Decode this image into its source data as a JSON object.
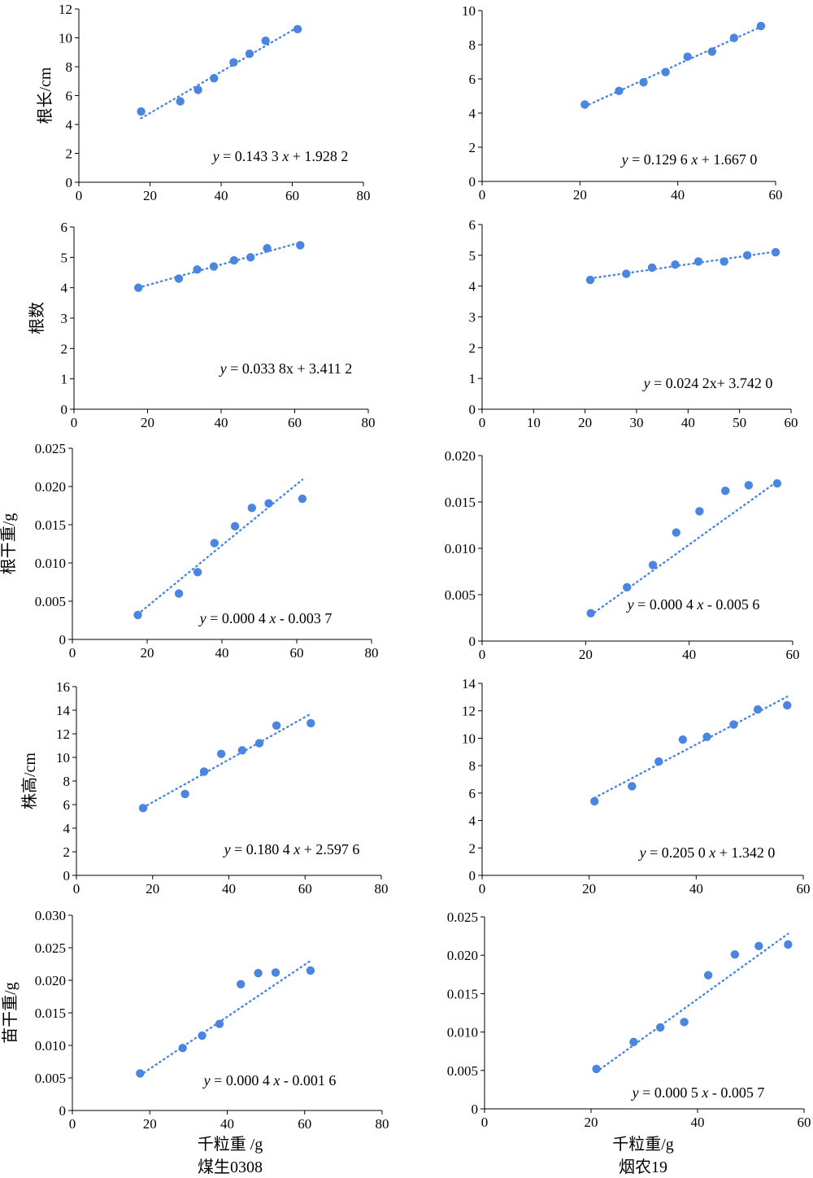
{
  "colors": {
    "point": "#4a86e0",
    "trend": "#4a86e0",
    "axis": "#000000"
  },
  "columns": [
    {
      "xlabel": "千粒重 /g",
      "cultivar": "煤生0308"
    },
    {
      "xlabel": "千粒重/g",
      "cultivar": "烟农19"
    }
  ],
  "chart_data": [
    {
      "type": "scatter",
      "row": 0,
      "col": 0,
      "ylabel": "根长/cm",
      "x_ticks": [
        "0",
        "20",
        "40",
        "60",
        "80"
      ],
      "y_ticks": [
        "0",
        "2",
        "4",
        "6",
        "8",
        "10",
        "12"
      ],
      "xlim": [
        0,
        80
      ],
      "ylim": [
        0,
        12
      ],
      "points": [
        [
          17.5,
          4.9
        ],
        [
          28.5,
          5.6
        ],
        [
          33.5,
          6.4
        ],
        [
          38,
          7.2
        ],
        [
          43.5,
          8.3
        ],
        [
          48,
          8.9
        ],
        [
          52.5,
          9.8
        ],
        [
          61.5,
          10.6
        ]
      ],
      "trend": {
        "x": [
          17.5,
          61.5
        ],
        "y": [
          4.43,
          10.73
        ]
      },
      "equation": "y = 0.143 3 x + 1.928 2"
    },
    {
      "type": "scatter",
      "row": 0,
      "col": 1,
      "ylabel": "",
      "x_ticks": [
        "0",
        "20",
        "40",
        "60"
      ],
      "y_ticks": [
        "0",
        "2",
        "4",
        "6",
        "8",
        "10"
      ],
      "xlim": [
        0,
        60
      ],
      "ylim": [
        0,
        10
      ],
      "points": [
        [
          21,
          4.5
        ],
        [
          28,
          5.3
        ],
        [
          33,
          5.8
        ],
        [
          37.5,
          6.4
        ],
        [
          42,
          7.3
        ],
        [
          47,
          7.6
        ],
        [
          51.5,
          8.4
        ],
        [
          57,
          9.1
        ]
      ],
      "trend": {
        "x": [
          21,
          57
        ],
        "y": [
          4.39,
          9.05
        ]
      },
      "equation": "y = 0.129 6 x + 1.667 0"
    },
    {
      "type": "scatter",
      "row": 1,
      "col": 0,
      "ylabel": "根数",
      "x_ticks": [
        "0",
        "20",
        "40",
        "60",
        "80"
      ],
      "y_ticks": [
        "0",
        "1",
        "2",
        "3",
        "4",
        "5",
        "6"
      ],
      "xlim": [
        0,
        80
      ],
      "ylim": [
        0,
        6
      ],
      "points": [
        [
          17.5,
          4.0
        ],
        [
          28.5,
          4.3
        ],
        [
          33.5,
          4.6
        ],
        [
          38,
          4.7
        ],
        [
          43.5,
          4.9
        ],
        [
          48,
          5.0
        ],
        [
          52.5,
          5.3
        ],
        [
          61.5,
          5.4
        ]
      ],
      "trend": {
        "x": [
          17.5,
          61.5
        ],
        "y": [
          4.0,
          5.49
        ]
      },
      "equation": "y = 0.033 8x + 3.411 2"
    },
    {
      "type": "scatter",
      "row": 1,
      "col": 1,
      "ylabel": "",
      "x_ticks": [
        "0",
        "10",
        "20",
        "30",
        "40",
        "50",
        "60"
      ],
      "y_ticks": [
        "0",
        "1",
        "2",
        "3",
        "4",
        "5",
        "6"
      ],
      "xlim": [
        0,
        60
      ],
      "ylim": [
        0,
        6
      ],
      "points": [
        [
          21,
          4.2
        ],
        [
          28,
          4.4
        ],
        [
          33,
          4.6
        ],
        [
          37.5,
          4.7
        ],
        [
          42,
          4.8
        ],
        [
          47,
          4.8
        ],
        [
          51.5,
          5.0
        ],
        [
          57,
          5.1
        ]
      ],
      "trend": {
        "x": [
          21,
          57
        ],
        "y": [
          4.25,
          5.12
        ]
      },
      "equation": "y = 0.024 2x+ 3.742 0"
    },
    {
      "type": "scatter",
      "row": 2,
      "col": 0,
      "ylabel": "根干重/g",
      "x_ticks": [
        "0",
        "20",
        "40",
        "60",
        "80"
      ],
      "y_ticks": [
        "0",
        "0.005",
        "0.010",
        "0.015",
        "0.020",
        "0.025"
      ],
      "xlim": [
        0,
        80
      ],
      "ylim": [
        0,
        0.025
      ],
      "points": [
        [
          17.5,
          0.0032
        ],
        [
          28.5,
          0.006
        ],
        [
          33.5,
          0.0088
        ],
        [
          38,
          0.0126
        ],
        [
          43.5,
          0.0148
        ],
        [
          48,
          0.0172
        ],
        [
          52.5,
          0.0178
        ],
        [
          61.5,
          0.0184
        ]
      ],
      "trend": {
        "x": [
          17.5,
          61.5
        ],
        "y": [
          0.0033,
          0.0209
        ]
      },
      "equation": "y = 0.000 4 x - 0.003 7"
    },
    {
      "type": "scatter",
      "row": 2,
      "col": 1,
      "ylabel": "",
      "x_ticks": [
        "0",
        "20",
        "40",
        "60"
      ],
      "y_ticks": [
        "0",
        "0.005",
        "0.010",
        "0.015",
        "0.020"
      ],
      "xlim": [
        0,
        60
      ],
      "ylim": [
        0,
        0.02
      ],
      "points": [
        [
          21,
          0.003
        ],
        [
          28,
          0.0058
        ],
        [
          33,
          0.0082
        ],
        [
          37.5,
          0.0117
        ],
        [
          42,
          0.014
        ],
        [
          47,
          0.0162
        ],
        [
          51.5,
          0.0168
        ],
        [
          57,
          0.017
        ]
      ],
      "trend": {
        "x": [
          21,
          57
        ],
        "y": [
          0.0028,
          0.0172
        ]
      },
      "equation": "y = 0.000 4 x - 0.005 6"
    },
    {
      "type": "scatter",
      "row": 3,
      "col": 0,
      "ylabel": "株高/cm",
      "x_ticks": [
        "0",
        "20",
        "40",
        "60",
        "80"
      ],
      "y_ticks": [
        "0",
        "2",
        "4",
        "6",
        "8",
        "10",
        "12",
        "14",
        "16"
      ],
      "xlim": [
        0,
        80
      ],
      "ylim": [
        0,
        16
      ],
      "points": [
        [
          17.5,
          5.7
        ],
        [
          28.5,
          6.9
        ],
        [
          33.5,
          8.8
        ],
        [
          38,
          10.3
        ],
        [
          43.5,
          10.6
        ],
        [
          48,
          11.2
        ],
        [
          52.5,
          12.7
        ],
        [
          61.5,
          12.9
        ]
      ],
      "trend": {
        "x": [
          17.5,
          61.5
        ],
        "y": [
          5.75,
          13.69
        ]
      },
      "equation": "y = 0.180 4 x + 2.597 6"
    },
    {
      "type": "scatter",
      "row": 3,
      "col": 1,
      "ylabel": "",
      "x_ticks": [
        "0",
        "20",
        "40",
        "60"
      ],
      "y_ticks": [
        "0",
        "2",
        "4",
        "6",
        "8",
        "10",
        "12",
        "14"
      ],
      "xlim": [
        0,
        60
      ],
      "ylim": [
        0,
        14
      ],
      "points": [
        [
          21,
          5.4
        ],
        [
          28,
          6.5
        ],
        [
          33,
          8.3
        ],
        [
          37.5,
          9.9
        ],
        [
          42,
          10.1
        ],
        [
          47,
          11.0
        ],
        [
          51.5,
          12.1
        ],
        [
          57,
          12.4
        ]
      ],
      "trend": {
        "x": [
          21,
          57
        ],
        "y": [
          5.65,
          13.03
        ]
      },
      "equation": "y = 0.205 0 x + 1.342 0"
    },
    {
      "type": "scatter",
      "row": 4,
      "col": 0,
      "ylabel": "苗干重/g",
      "x_ticks": [
        "0",
        "20",
        "40",
        "60",
        "80"
      ],
      "y_ticks": [
        "0",
        "0.005",
        "0.010",
        "0.015",
        "0.020",
        "0.025",
        "0.030"
      ],
      "xlim": [
        0,
        80
      ],
      "ylim": [
        0,
        0.03
      ],
      "points": [
        [
          17.5,
          0.0057
        ],
        [
          28.5,
          0.0096
        ],
        [
          33.5,
          0.0115
        ],
        [
          38,
          0.0133
        ],
        [
          43.5,
          0.0194
        ],
        [
          48,
          0.0211
        ],
        [
          52.5,
          0.0212
        ],
        [
          61.5,
          0.0215
        ]
      ],
      "trend": {
        "x": [
          17.5,
          61.5
        ],
        "y": [
          0.0054,
          0.023
        ]
      },
      "equation": "y = 0.000 4 x - 0.001 6"
    },
    {
      "type": "scatter",
      "row": 4,
      "col": 1,
      "ylabel": "",
      "x_ticks": [
        "0",
        "20",
        "40",
        "60"
      ],
      "y_ticks": [
        "0",
        "0.005",
        "0.010",
        "0.015",
        "0.020",
        "0.025"
      ],
      "xlim": [
        0,
        60
      ],
      "ylim": [
        0,
        0.025
      ],
      "points": [
        [
          21,
          0.0052
        ],
        [
          28,
          0.0087
        ],
        [
          33,
          0.0106
        ],
        [
          37.5,
          0.0113
        ],
        [
          42,
          0.0174
        ],
        [
          47,
          0.0201
        ],
        [
          51.5,
          0.0212
        ],
        [
          57,
          0.0214
        ]
      ],
      "trend": {
        "x": [
          21,
          57
        ],
        "y": [
          0.0048,
          0.0228
        ]
      },
      "equation": "y = 0.000 5 x - 0.005 7"
    }
  ]
}
